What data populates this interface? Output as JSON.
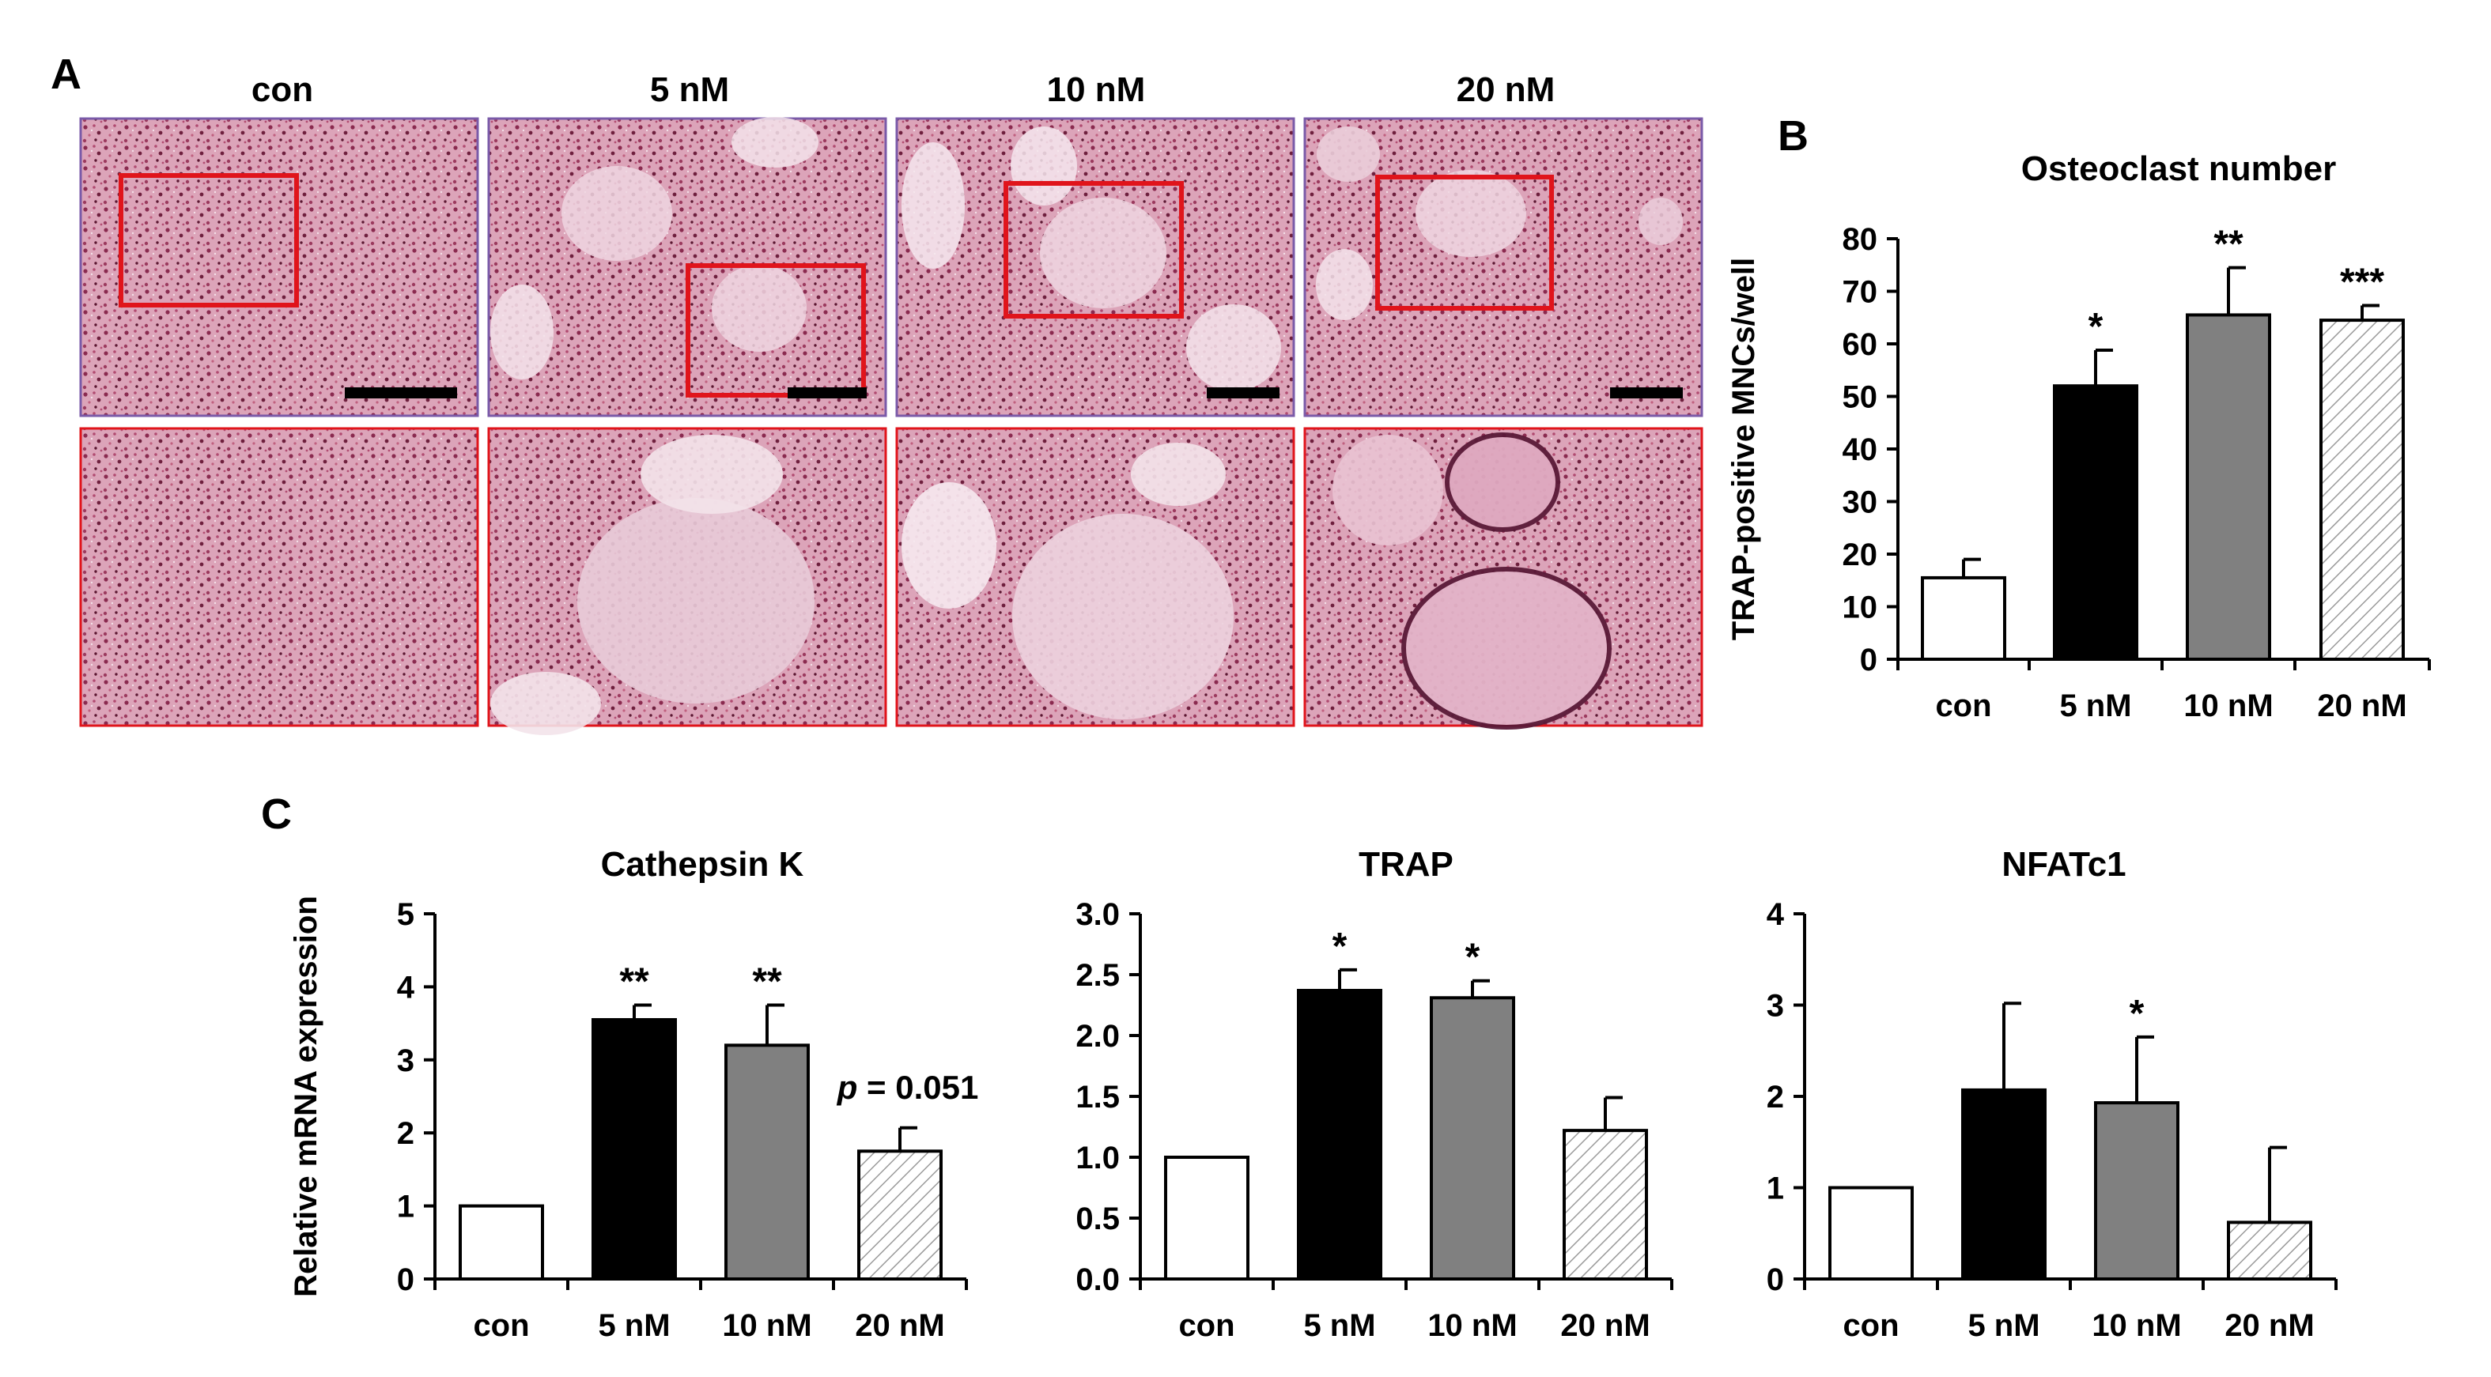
{
  "panel_letters": {
    "a": "A",
    "b": "B",
    "c": "C"
  },
  "panel_a": {
    "columns": [
      "con",
      "5 nM",
      "10 nM",
      "20 nM"
    ],
    "tile_color": "#c56a8c"
  },
  "chart_data": [
    {
      "id": "B",
      "type": "bar",
      "title": "Osteoclast number",
      "ylabel": "TRAP-positive MNCs/well",
      "xlabel": "",
      "categories": [
        "con",
        "5 nM",
        "10 nM",
        "20 nM"
      ],
      "values": [
        15.5,
        52,
        65.5,
        64.5
      ],
      "errors": [
        3.5,
        6.8,
        9,
        2.8
      ],
      "significance": [
        "",
        "*",
        "**",
        "***"
      ],
      "ylim": [
        0,
        80
      ],
      "yticks": [
        "0",
        "10",
        "20",
        "30",
        "40",
        "50",
        "60",
        "70",
        "80"
      ],
      "grid": false,
      "bar_fills": [
        "white",
        "black",
        "gray",
        "hatch"
      ]
    },
    {
      "id": "C1",
      "type": "bar",
      "title": "Cathepsin K",
      "ylabel": "Relative mRNA expression",
      "xlabel": "",
      "categories": [
        "con",
        "5 nM",
        "10 nM",
        "20 nM"
      ],
      "values": [
        1.0,
        3.55,
        3.2,
        1.75
      ],
      "errors": [
        0,
        0.2,
        0.55,
        0.32
      ],
      "significance": [
        "",
        "**",
        "**",
        ""
      ],
      "annotation": "p = 0.051",
      "annotation_italic": "p",
      "annotation_rest": " = 0.051",
      "ylim": [
        0,
        5
      ],
      "yticks": [
        "0",
        "1",
        "2",
        "3",
        "4",
        "5"
      ],
      "grid": false,
      "bar_fills": [
        "white",
        "black",
        "gray",
        "hatch"
      ]
    },
    {
      "id": "C2",
      "type": "bar",
      "title": "TRAP",
      "ylabel": "",
      "xlabel": "",
      "categories": [
        "con",
        "5 nM",
        "10 nM",
        "20 nM"
      ],
      "values": [
        1.0,
        2.37,
        2.31,
        1.22
      ],
      "errors": [
        0,
        0.17,
        0.14,
        0.27
      ],
      "significance": [
        "",
        "*",
        "*",
        ""
      ],
      "ylim": [
        0,
        3
      ],
      "yticks": [
        "0.0",
        "0.5",
        "1.0",
        "1.5",
        "2.0",
        "2.5",
        "3.0"
      ],
      "grid": false,
      "bar_fills": [
        "white",
        "black",
        "gray",
        "hatch"
      ]
    },
    {
      "id": "C3",
      "type": "bar",
      "title": "NFATc1",
      "ylabel": "",
      "xlabel": "",
      "categories": [
        "con",
        "5 nM",
        "10 nM",
        "20 nM"
      ],
      "values": [
        1.0,
        2.07,
        1.93,
        0.62
      ],
      "errors": [
        0,
        0.95,
        0.72,
        0.82
      ],
      "significance": [
        "",
        "",
        "*",
        ""
      ],
      "ylim": [
        0,
        4
      ],
      "yticks": [
        "0",
        "1",
        "2",
        "3",
        "4"
      ],
      "grid": false,
      "bar_fills": [
        "white",
        "black",
        "gray",
        "hatch"
      ]
    }
  ]
}
